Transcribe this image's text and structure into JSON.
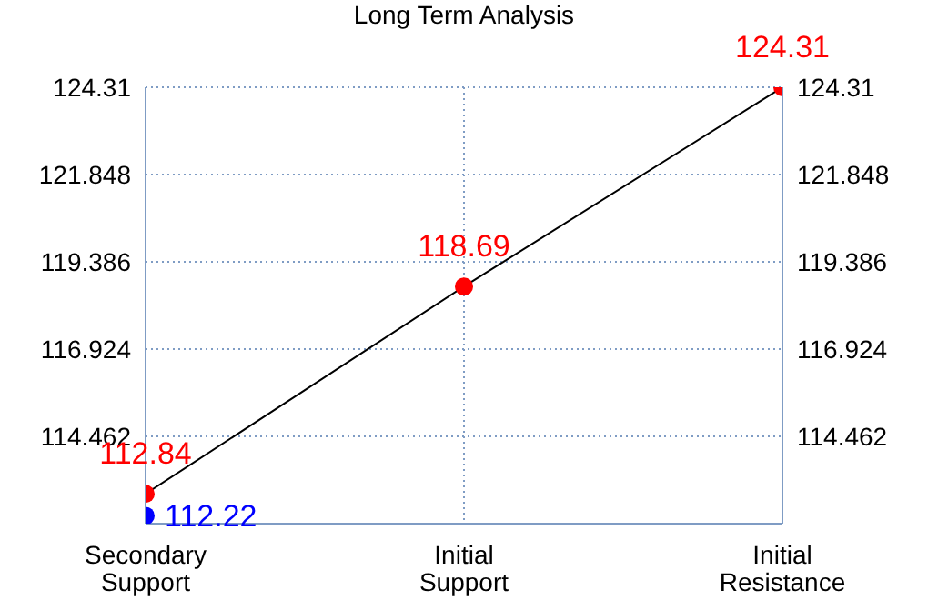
{
  "chart_data": {
    "type": "line",
    "title": "Long Term Analysis",
    "categories": [
      "Secondary Support",
      "Initial Support",
      "Initial Resistance"
    ],
    "ylim": [
      112,
      124.31
    ],
    "yticks": [
      124.31,
      121.848,
      119.386,
      116.924,
      114.462
    ],
    "y2lim": [
      112,
      124.31
    ],
    "y2ticks": [
      124.31,
      121.848,
      119.386,
      116.924,
      114.462
    ],
    "grid": true,
    "series": [
      {
        "color": "#000000",
        "marker": "none",
        "values": [
          112.84,
          118.69,
          124.31
        ]
      },
      {
        "type": "scatter",
        "color": "#ff0000",
        "marker": "circle",
        "values": [
          112.84,
          118.69,
          124.31
        ],
        "value_labels": [
          "112.84",
          "118.69",
          "124.31"
        ]
      },
      {
        "type": "scatter",
        "color": "#0000ff",
        "marker": "circle",
        "values": [
          112.22,
          null,
          null
        ],
        "value_labels": [
          "112.22",
          null,
          null
        ]
      }
    ]
  }
}
